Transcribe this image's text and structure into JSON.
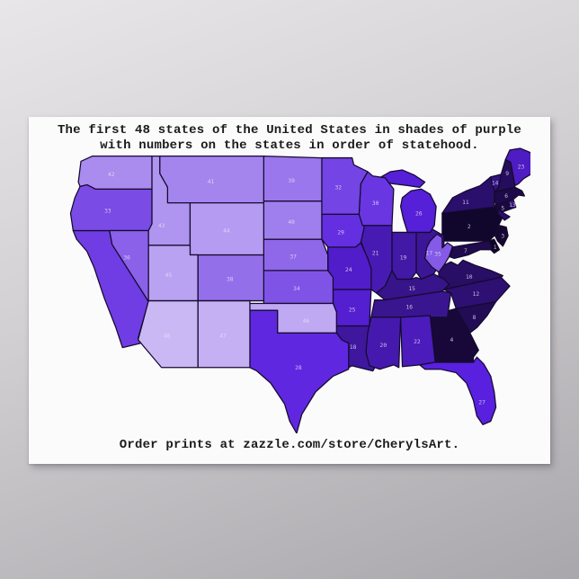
{
  "poster": {
    "title_line1": "The first 48 states of the United States in shades of purple",
    "title_line2": "with numbers on the states in order of statehood.",
    "footer": "Order prints at zazzle.com/store/CherylsArt."
  },
  "background": {
    "backdrop_top": "#e8e6e8",
    "backdrop_bottom": "#a9a7ab",
    "poster_bg": "#fcfbfc",
    "text_color": "#1b1b1b",
    "state_border_color": "#150a2e",
    "state_number_color": "#e6def6"
  },
  "map": {
    "legend_concept": "shade of purple encodes order of statehood: 1 darkest, 48 lightest",
    "color_ramp": {
      "hue": 258,
      "saturation": 75,
      "lightness_min": 8,
      "lightness_max": 84,
      "darkest_hex": "#0e0524",
      "lightest_hex": "#cab8f5"
    },
    "states": [
      {
        "number": 1,
        "abbr": "DE",
        "name": "Delaware"
      },
      {
        "number": 2,
        "abbr": "PA",
        "name": "Pennsylvania"
      },
      {
        "number": 3,
        "abbr": "NJ",
        "name": "New Jersey"
      },
      {
        "number": 4,
        "abbr": "GA",
        "name": "Georgia"
      },
      {
        "number": 5,
        "abbr": "CT",
        "name": "Connecticut"
      },
      {
        "number": 6,
        "abbr": "MA",
        "name": "Massachusetts"
      },
      {
        "number": 7,
        "abbr": "MD",
        "name": "Maryland"
      },
      {
        "number": 8,
        "abbr": "SC",
        "name": "South Carolina"
      },
      {
        "number": 9,
        "abbr": "NH",
        "name": "New Hampshire"
      },
      {
        "number": 10,
        "abbr": "VA",
        "name": "Virginia"
      },
      {
        "number": 11,
        "abbr": "NY",
        "name": "New York"
      },
      {
        "number": 12,
        "abbr": "NC",
        "name": "North Carolina"
      },
      {
        "number": 13,
        "abbr": "RI",
        "name": "Rhode Island"
      },
      {
        "number": 14,
        "abbr": "VT",
        "name": "Vermont"
      },
      {
        "number": 15,
        "abbr": "KY",
        "name": "Kentucky"
      },
      {
        "number": 16,
        "abbr": "TN",
        "name": "Tennessee"
      },
      {
        "number": 17,
        "abbr": "OH",
        "name": "Ohio"
      },
      {
        "number": 18,
        "abbr": "LA",
        "name": "Louisiana"
      },
      {
        "number": 19,
        "abbr": "IN",
        "name": "Indiana"
      },
      {
        "number": 20,
        "abbr": "MS",
        "name": "Mississippi"
      },
      {
        "number": 21,
        "abbr": "IL",
        "name": "Illinois"
      },
      {
        "number": 22,
        "abbr": "AL",
        "name": "Alabama"
      },
      {
        "number": 23,
        "abbr": "ME",
        "name": "Maine"
      },
      {
        "number": 24,
        "abbr": "MO",
        "name": "Missouri"
      },
      {
        "number": 25,
        "abbr": "AR",
        "name": "Arkansas"
      },
      {
        "number": 26,
        "abbr": "MI",
        "name": "Michigan"
      },
      {
        "number": 27,
        "abbr": "FL",
        "name": "Florida"
      },
      {
        "number": 28,
        "abbr": "TX",
        "name": "Texas"
      },
      {
        "number": 29,
        "abbr": "IA",
        "name": "Iowa"
      },
      {
        "number": 30,
        "abbr": "WI",
        "name": "Wisconsin"
      },
      {
        "number": 31,
        "abbr": "CA",
        "name": "California"
      },
      {
        "number": 32,
        "abbr": "MN",
        "name": "Minnesota"
      },
      {
        "number": 33,
        "abbr": "OR",
        "name": "Oregon"
      },
      {
        "number": 34,
        "abbr": "KS",
        "name": "Kansas"
      },
      {
        "number": 35,
        "abbr": "WV",
        "name": "West Virginia"
      },
      {
        "number": 36,
        "abbr": "NV",
        "name": "Nevada"
      },
      {
        "number": 37,
        "abbr": "NE",
        "name": "Nebraska"
      },
      {
        "number": 38,
        "abbr": "CO",
        "name": "Colorado"
      },
      {
        "number": 39,
        "abbr": "ND",
        "name": "North Dakota"
      },
      {
        "number": 40,
        "abbr": "SD",
        "name": "South Dakota"
      },
      {
        "number": 41,
        "abbr": "MT",
        "name": "Montana"
      },
      {
        "number": 42,
        "abbr": "WA",
        "name": "Washington"
      },
      {
        "number": 43,
        "abbr": "ID",
        "name": "Idaho"
      },
      {
        "number": 44,
        "abbr": "WY",
        "name": "Wyoming"
      },
      {
        "number": 45,
        "abbr": "UT",
        "name": "Utah"
      },
      {
        "number": 46,
        "abbr": "OK",
        "name": "Oklahoma"
      },
      {
        "number": 47,
        "abbr": "NM",
        "name": "New Mexico"
      },
      {
        "number": 48,
        "abbr": "AZ",
        "name": "Arizona"
      }
    ]
  }
}
